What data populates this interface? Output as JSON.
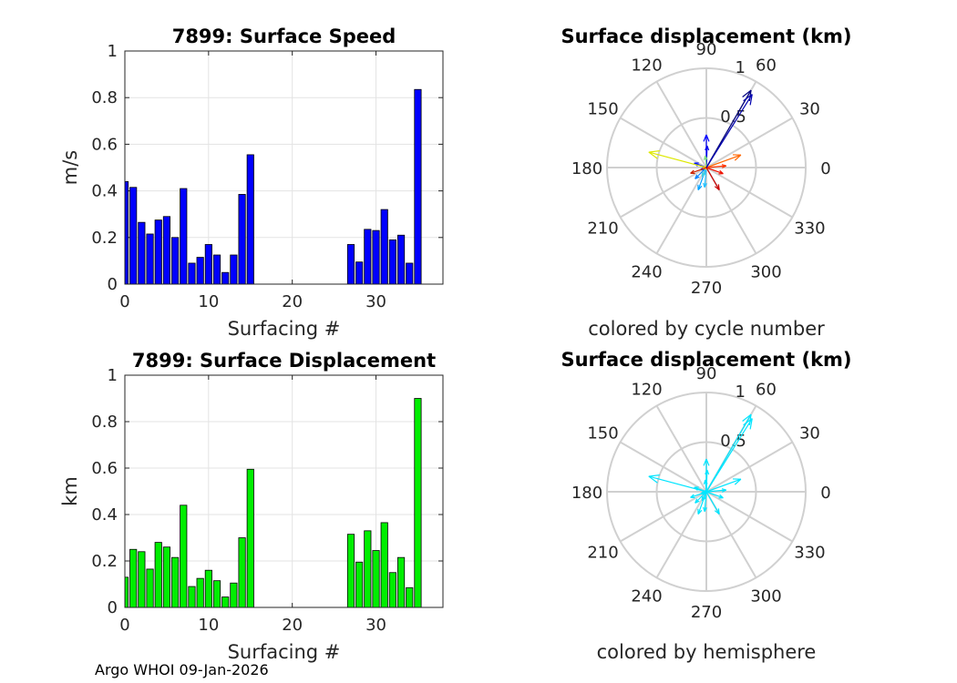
{
  "chart_data": [
    {
      "type": "bar",
      "title": "7899: Surface Speed",
      "xlabel": "Surfacing #",
      "ylabel": "m/s",
      "xlim": [
        0,
        38
      ],
      "ylim": [
        0,
        1
      ],
      "xticks": [
        "0",
        "10",
        "20",
        "30"
      ],
      "yticks": [
        "0",
        "0.2",
        "0.4",
        "0.6",
        "0.8",
        "1"
      ],
      "color": "#0000ff",
      "x": [
        0,
        1,
        2,
        3,
        4,
        5,
        6,
        7,
        8,
        9,
        10,
        11,
        12,
        13,
        14,
        15,
        27,
        28,
        29,
        30,
        31,
        32,
        33,
        34,
        35
      ],
      "values": [
        0.44,
        0.415,
        0.265,
        0.215,
        0.275,
        0.29,
        0.2,
        0.41,
        0.09,
        0.115,
        0.17,
        0.125,
        0.05,
        0.125,
        0.385,
        0.555,
        0.17,
        0.095,
        0.235,
        0.23,
        0.32,
        0.19,
        0.21,
        0.09,
        0.835
      ]
    },
    {
      "type": "bar",
      "title": "7899: Surface Displacement",
      "xlabel": "Surfacing #",
      "ylabel": "km",
      "xlim": [
        0,
        38
      ],
      "ylim": [
        0,
        1
      ],
      "xticks": [
        "0",
        "10",
        "20",
        "30"
      ],
      "yticks": [
        "0",
        "0.2",
        "0.4",
        "0.6",
        "0.8",
        "1"
      ],
      "color": "#00ee00",
      "x": [
        0,
        1,
        2,
        3,
        4,
        5,
        6,
        7,
        8,
        9,
        10,
        11,
        12,
        13,
        14,
        15,
        27,
        28,
        29,
        30,
        31,
        32,
        33,
        34,
        35
      ],
      "values": [
        0.13,
        0.25,
        0.24,
        0.165,
        0.28,
        0.26,
        0.215,
        0.44,
        0.09,
        0.125,
        0.16,
        0.115,
        0.045,
        0.105,
        0.3,
        0.595,
        0.315,
        0.195,
        0.33,
        0.245,
        0.365,
        0.15,
        0.215,
        0.085,
        0.9
      ]
    },
    {
      "type": "compass",
      "title": "Surface displacement (km)",
      "caption": "colored by cycle number",
      "rlim": [
        0,
        1
      ],
      "rticks": [
        "0.5",
        "1"
      ],
      "angle_labels": [
        "0",
        "30",
        "60",
        "90",
        "120",
        "150",
        "180",
        "210",
        "240",
        "270",
        "300",
        "330"
      ],
      "vectors": [
        {
          "angle": 90,
          "r": 0.33,
          "color": "#0000ff"
        },
        {
          "angle": 88,
          "r": 0.22,
          "color": "#0000ee"
        },
        {
          "angle": 160,
          "r": 0.13,
          "color": "#0010ff"
        },
        {
          "angle": 200,
          "r": 0.06,
          "color": "#0040ff"
        },
        {
          "angle": 225,
          "r": 0.16,
          "color": "#0080ff"
        },
        {
          "angle": 250,
          "r": 0.24,
          "color": "#00a0ff"
        },
        {
          "angle": 265,
          "r": 0.2,
          "color": "#20c0ff"
        },
        {
          "angle": 245,
          "r": 0.1,
          "color": "#40d0e0"
        },
        {
          "angle": 95,
          "r": 0.12,
          "color": "#80e080"
        },
        {
          "angle": 165,
          "r": 0.6,
          "color": "#dde800"
        },
        {
          "angle": 195,
          "r": 0.04,
          "color": "#ffcc00"
        },
        {
          "angle": 20,
          "r": 0.37,
          "color": "#ff6600"
        },
        {
          "angle": 5,
          "r": 0.2,
          "color": "#ff3300"
        },
        {
          "angle": 340,
          "r": 0.18,
          "color": "#ee1100"
        },
        {
          "angle": 300,
          "r": 0.26,
          "color": "#cc0000"
        },
        {
          "angle": 200,
          "r": 0.17,
          "color": "#cc2200"
        },
        {
          "angle": 60,
          "r": 0.9,
          "color": "#000080"
        },
        {
          "angle": 58,
          "r": 0.87,
          "color": "#0000b0"
        }
      ]
    },
    {
      "type": "compass",
      "title": "Surface displacement (km)",
      "caption": "colored by hemisphere",
      "rlim": [
        0,
        1
      ],
      "rticks": [
        "0.5",
        "1"
      ],
      "angle_labels": [
        "0",
        "30",
        "60",
        "90",
        "120",
        "150",
        "180",
        "210",
        "240",
        "270",
        "300",
        "330"
      ],
      "color": "#00e5ff",
      "vectors": [
        {
          "angle": 90,
          "r": 0.33
        },
        {
          "angle": 88,
          "r": 0.22
        },
        {
          "angle": 160,
          "r": 0.13
        },
        {
          "angle": 200,
          "r": 0.06
        },
        {
          "angle": 225,
          "r": 0.16
        },
        {
          "angle": 250,
          "r": 0.24
        },
        {
          "angle": 265,
          "r": 0.2
        },
        {
          "angle": 245,
          "r": 0.1
        },
        {
          "angle": 95,
          "r": 0.12
        },
        {
          "angle": 165,
          "r": 0.6
        },
        {
          "angle": 195,
          "r": 0.04
        },
        {
          "angle": 20,
          "r": 0.37
        },
        {
          "angle": 5,
          "r": 0.2
        },
        {
          "angle": 340,
          "r": 0.18
        },
        {
          "angle": 300,
          "r": 0.26
        },
        {
          "angle": 200,
          "r": 0.17
        },
        {
          "angle": 60,
          "r": 0.9
        },
        {
          "angle": 58,
          "r": 0.87
        }
      ]
    }
  ],
  "footer": "Argo WHOI 09-Jan-2026"
}
